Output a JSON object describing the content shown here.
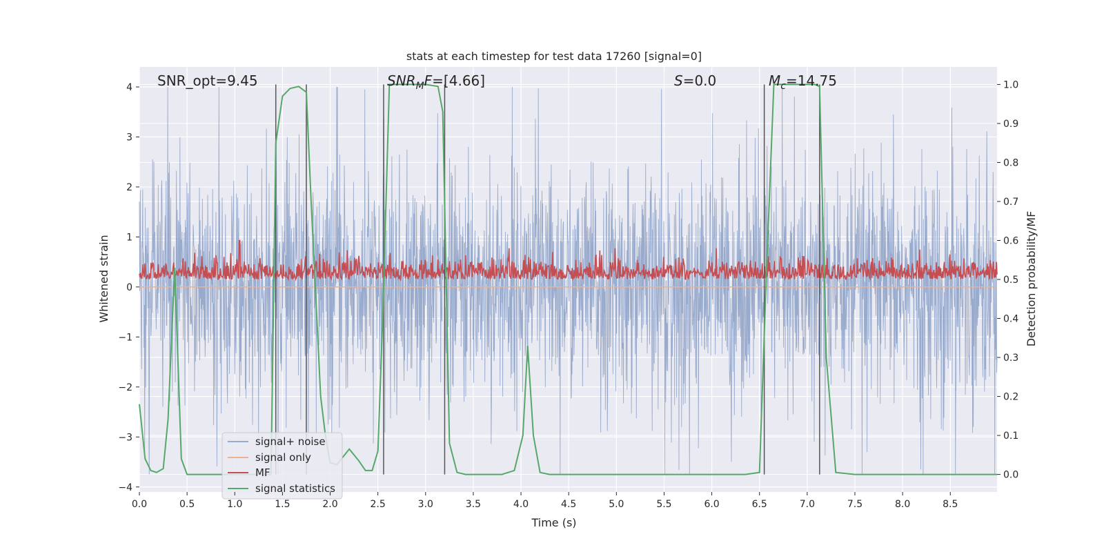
{
  "figure": {
    "title": "stats at each timestep for test data 17260 [signal=0]",
    "xlabel": "Time (s)",
    "ylabel_left": "Whitened strain",
    "ylabel_right": "Detection probability/MF",
    "annotations": {
      "snr_opt": "SNR_opt=9.45",
      "snr_mf_sym": "SNR",
      "snr_mf_sub": "M",
      "snr_mf_sym2": "F",
      "snr_mf_val": "=[4.66]",
      "s_sym": "S",
      "s_val": "=0.0",
      "mc_sym": "M",
      "mc_sub": "c",
      "mc_val": "=14.75"
    }
  },
  "colors": {
    "background": "#eaeaf2",
    "grid": "#ffffff",
    "signal_noise": "#99abcd",
    "signal_only": "#eeb08e",
    "mf": "#c44e52",
    "signal_statistics": "#55a868",
    "markers": "#555555"
  },
  "chart_data": {
    "type": "line",
    "xlim": [
      0.0,
      8.99
    ],
    "ylim_left": [
      -4.1,
      4.4
    ],
    "ylim_right": [
      -0.045,
      1.045
    ],
    "x_ticks": [
      "0.0",
      "0.5",
      "1.0",
      "1.5",
      "2.0",
      "2.5",
      "3.0",
      "3.5",
      "4.0",
      "4.5",
      "5.0",
      "5.5",
      "6.0",
      "6.5",
      "7.0",
      "7.5",
      "8.0",
      "8.5"
    ],
    "y_left_ticks": [
      "4",
      "3",
      "2",
      "1",
      "0",
      "−1",
      "−2",
      "−3",
      "−4"
    ],
    "y_right_ticks": [
      "1.0",
      "0.9",
      "0.8",
      "0.7",
      "0.6",
      "0.5",
      "0.4",
      "0.3",
      "0.2",
      "0.1",
      "0.0"
    ],
    "legend": {
      "location": "lower-left",
      "entries": [
        "signal+ noise",
        "signal only",
        "MF",
        "signal statistics"
      ]
    },
    "series": [
      {
        "name": "signal+ noise",
        "description_axis": "left",
        "envelope": {
          "typical_abs": 1.5,
          "peak_abs": 4.0
        }
      },
      {
        "name": "signal only",
        "axis": "left",
        "values_constant": 0.0
      },
      {
        "name": "MF",
        "axis": "right",
        "baseline": 0.5,
        "range": [
          0.5,
          0.58
        ],
        "spike": {
          "x": 1.05,
          "y": 0.6
        }
      },
      {
        "name": "signal statistics",
        "axis": "right",
        "x": [
          0.0,
          0.06,
          0.12,
          0.18,
          0.25,
          0.3,
          0.37,
          0.44,
          0.5,
          0.6,
          0.8,
          1.0,
          1.2,
          1.38,
          1.43,
          1.5,
          1.58,
          1.67,
          1.75,
          1.8,
          1.86,
          1.9,
          1.95,
          2.0,
          2.07,
          2.2,
          2.3,
          2.37,
          2.44,
          2.5,
          2.55,
          2.62,
          2.7,
          2.8,
          3.0,
          3.13,
          3.18,
          3.25,
          3.33,
          3.42,
          3.6,
          3.8,
          3.93,
          4.02,
          4.07,
          4.13,
          4.2,
          4.3,
          4.6,
          5.0,
          5.5,
          6.0,
          6.35,
          6.5,
          6.57,
          6.65,
          6.8,
          7.0,
          7.08,
          7.13,
          7.2,
          7.3,
          7.5,
          8.0,
          8.5,
          8.99
        ],
        "y": [
          0.18,
          0.04,
          0.01,
          0.005,
          0.015,
          0.14,
          0.53,
          0.04,
          0.0,
          0.0,
          0.0,
          0.0,
          0.0,
          0.0,
          0.85,
          0.97,
          0.99,
          0.995,
          0.98,
          0.7,
          0.4,
          0.2,
          0.1,
          0.03,
          0.025,
          0.065,
          0.035,
          0.01,
          0.01,
          0.06,
          0.4,
          1.0,
          1.0,
          1.0,
          1.0,
          0.995,
          0.93,
          0.08,
          0.005,
          0.0,
          0.0,
          0.0,
          0.01,
          0.1,
          0.33,
          0.1,
          0.005,
          0.0,
          0.0,
          0.0,
          0.0,
          0.0,
          0.0,
          0.005,
          0.5,
          1.0,
          1.0,
          1.0,
          1.0,
          0.995,
          0.3,
          0.005,
          0.0,
          0.0,
          0.0,
          0.0
        ]
      }
    ],
    "vertical_markers_x": [
      1.43,
      1.75,
      2.56,
      3.2,
      6.55,
      7.13
    ]
  }
}
